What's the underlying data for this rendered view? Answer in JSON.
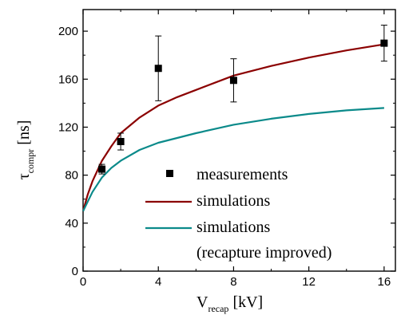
{
  "chart_data": {
    "type": "scatter",
    "xlabel": {
      "main": "V",
      "sub": "recap",
      "unit": " [kV]"
    },
    "ylabel": {
      "main": "τ",
      "sub": "compr",
      "unit": " [ns]"
    },
    "xlim": [
      0,
      16.6
    ],
    "ylim": [
      0,
      218
    ],
    "xticks": [
      0,
      4,
      8,
      12,
      16
    ],
    "yticks": [
      0,
      40,
      80,
      120,
      160,
      200
    ],
    "xtick_labels": [
      "0",
      "4",
      "8",
      "12",
      "16"
    ],
    "ytick_labels": [
      "0",
      "40",
      "80",
      "120",
      "160",
      "200"
    ],
    "grid": false,
    "legend_position": "lower-right",
    "series": [
      {
        "name": "measurements",
        "kind": "points",
        "color": "#000000",
        "points": [
          {
            "x": 1,
            "y": 85,
            "err": 4
          },
          {
            "x": 2,
            "y": 108,
            "err": 7
          },
          {
            "x": 4,
            "y": 169,
            "err": 27
          },
          {
            "x": 8,
            "y": 159,
            "err": 18
          },
          {
            "x": 16,
            "y": 190,
            "err": 15
          }
        ]
      },
      {
        "name": "simulations",
        "kind": "line",
        "color": "#8b0000",
        "x": [
          0,
          0.25,
          0.5,
          1,
          1.5,
          2,
          3,
          4,
          5,
          6,
          8,
          10,
          12,
          14,
          16
        ],
        "y": [
          50,
          64,
          75,
          92,
          104,
          115,
          128,
          138,
          145,
          151,
          163,
          171,
          178,
          184,
          189
        ]
      },
      {
        "name": "simulations\n(recapture improved)",
        "name_lines": [
          "simulations",
          "(recapture improved)"
        ],
        "kind": "line",
        "color": "#0b8a8a",
        "x": [
          0,
          0.25,
          0.5,
          1,
          1.5,
          2,
          3,
          4,
          5,
          6,
          8,
          10,
          12,
          14,
          16
        ],
        "y": [
          50,
          58,
          66,
          78,
          86,
          92,
          101,
          107,
          111,
          115,
          122,
          127,
          131,
          134,
          136
        ]
      }
    ]
  }
}
